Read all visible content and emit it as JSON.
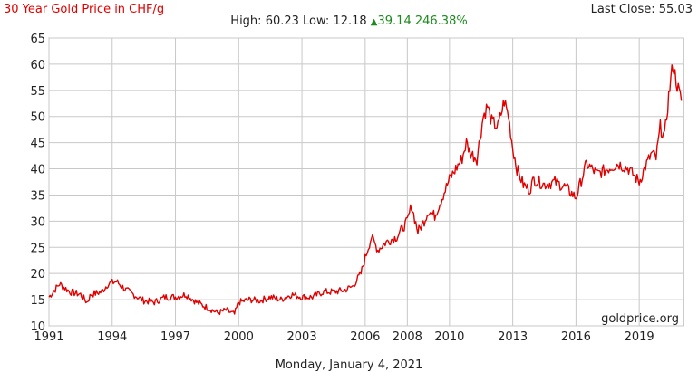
{
  "header": {
    "title": "30 Year Gold Price in CHF/g",
    "last_close": "Last Close: 55.03",
    "high_low": "High: 60.23 Low: 12.18",
    "change": "39.14 246.38%"
  },
  "footer": {
    "date": "Monday, January 4, 2021"
  },
  "colors": {
    "line": "#e00000",
    "grid": "#c8c8c8",
    "title": "#e00000",
    "up": "#1a8a1a"
  },
  "icons": {
    "change_arrow": "up-triangle-icon"
  },
  "chart_data": {
    "type": "line",
    "title": "30 Year Gold Price in CHF/g",
    "xlabel": "",
    "ylabel": "",
    "xlim": [
      1991,
      2021.1
    ],
    "ylim": [
      10,
      65
    ],
    "x_ticks": [
      1991,
      1994,
      1997,
      2000,
      2003,
      2006,
      2008,
      2010,
      2013,
      2016,
      2019
    ],
    "x_tick_labels": [
      "1991",
      "1994",
      "1997",
      "2000",
      "2003",
      "2006",
      "2008",
      "2010",
      "2013",
      "2016",
      "2019"
    ],
    "y_ticks": [
      10,
      15,
      20,
      25,
      30,
      35,
      40,
      45,
      50,
      55,
      60,
      65
    ],
    "y_tick_labels": [
      "10",
      "15",
      "20",
      "25",
      "30",
      "35",
      "40",
      "45",
      "50",
      "55",
      "60",
      "65"
    ],
    "grid": true,
    "legend": "none",
    "watermark": "goldprice.org",
    "series": [
      {
        "x": [
          1991.0,
          1991.5,
          1992.0,
          1992.5,
          1992.8,
          1993.0,
          1993.5,
          1993.8,
          1994.2,
          1994.6,
          1995.0,
          1995.5,
          1996.0,
          1996.5,
          1997.0,
          1997.5,
          1998.0,
          1998.5,
          1999.0,
          1999.4,
          1999.8,
          2000.0,
          2000.5,
          2001.0,
          2001.5,
          2002.0,
          2002.5,
          2003.0,
          2003.5,
          2004.0,
          2004.5,
          2005.0,
          2005.4,
          2005.8,
          2006.0,
          2006.3,
          2006.6,
          2007.0,
          2007.5,
          2008.0,
          2008.2,
          2008.5,
          2008.8,
          2009.0,
          2009.3,
          2009.6,
          2010.0,
          2010.3,
          2010.6,
          2010.8,
          2011.0,
          2011.3,
          2011.6,
          2011.8,
          2012.0,
          2012.3,
          2012.6,
          2012.8,
          2013.0,
          2013.2,
          2013.5,
          2013.8,
          2014.0,
          2014.5,
          2015.0,
          2015.5,
          2016.0,
          2016.5,
          2017.0,
          2017.5,
          2018.0,
          2018.5,
          2019.0,
          2019.3,
          2019.6,
          2019.8,
          2020.0,
          2020.2,
          2020.4,
          2020.6,
          2020.8,
          2021.0
        ],
        "y": [
          15.5,
          18.0,
          16.5,
          16.0,
          14.5,
          16.0,
          16.5,
          18.0,
          18.5,
          17.0,
          16.0,
          14.8,
          14.5,
          15.5,
          15.5,
          16.0,
          14.5,
          13.5,
          12.5,
          13.0,
          12.2,
          14.5,
          15.0,
          14.8,
          15.5,
          15.0,
          16.0,
          15.5,
          15.5,
          16.5,
          16.5,
          16.8,
          17.5,
          20.0,
          23.0,
          27.0,
          24.5,
          26.0,
          27.0,
          30.0,
          33.0,
          28.0,
          30.0,
          32.0,
          31.0,
          34.0,
          38.0,
          40.0,
          42.0,
          45.0,
          43.0,
          42.0,
          50.0,
          52.0,
          49.0,
          48.0,
          53.0,
          50.0,
          44.0,
          40.0,
          37.0,
          36.0,
          38.0,
          37.0,
          37.5,
          36.5,
          34.5,
          41.0,
          39.0,
          40.0,
          41.0,
          40.0,
          37.5,
          40.5,
          43.0,
          42.0,
          48.0,
          46.0,
          54.0,
          60.0,
          56.0,
          53.0
        ]
      }
    ]
  }
}
